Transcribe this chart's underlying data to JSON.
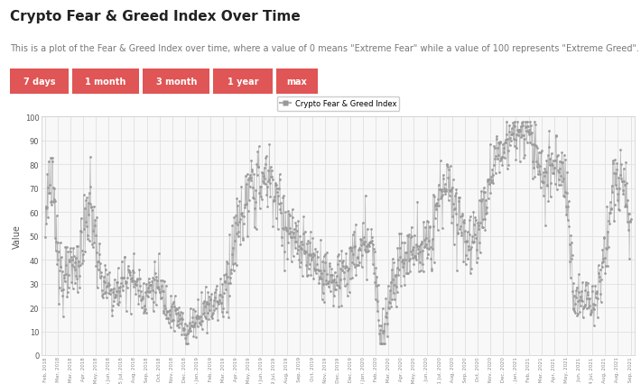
{
  "title": "Crypto Fear & Greed Index Over Time",
  "subtitle": "This is a plot of the Fear & Greed Index over time, where a value of 0 means \"Extreme Fear\" while a value of 100 represents \"Extreme Greed\".",
  "buttons": [
    "7 days",
    "1 month",
    "3 month",
    "1 year",
    "max"
  ],
  "button_color": "#e05555",
  "legend_label": "Crypto Fear & Greed Index",
  "ylabel": "Value",
  "ylim": [
    0,
    100
  ],
  "yticks": [
    0,
    10,
    20,
    30,
    40,
    50,
    60,
    70,
    80,
    90,
    100
  ],
  "line_color": "#b0b0b0",
  "marker_color": "#999999",
  "grid_color": "#e0e0e0",
  "bg_color": "#ffffff",
  "plot_bg": "#f8f8f8",
  "title_color": "#222222",
  "subtitle_color": "#777777",
  "title_fontsize": 11,
  "subtitle_fontsize": 7,
  "axis_label_fontsize": 7,
  "tick_fontsize": 5.0
}
